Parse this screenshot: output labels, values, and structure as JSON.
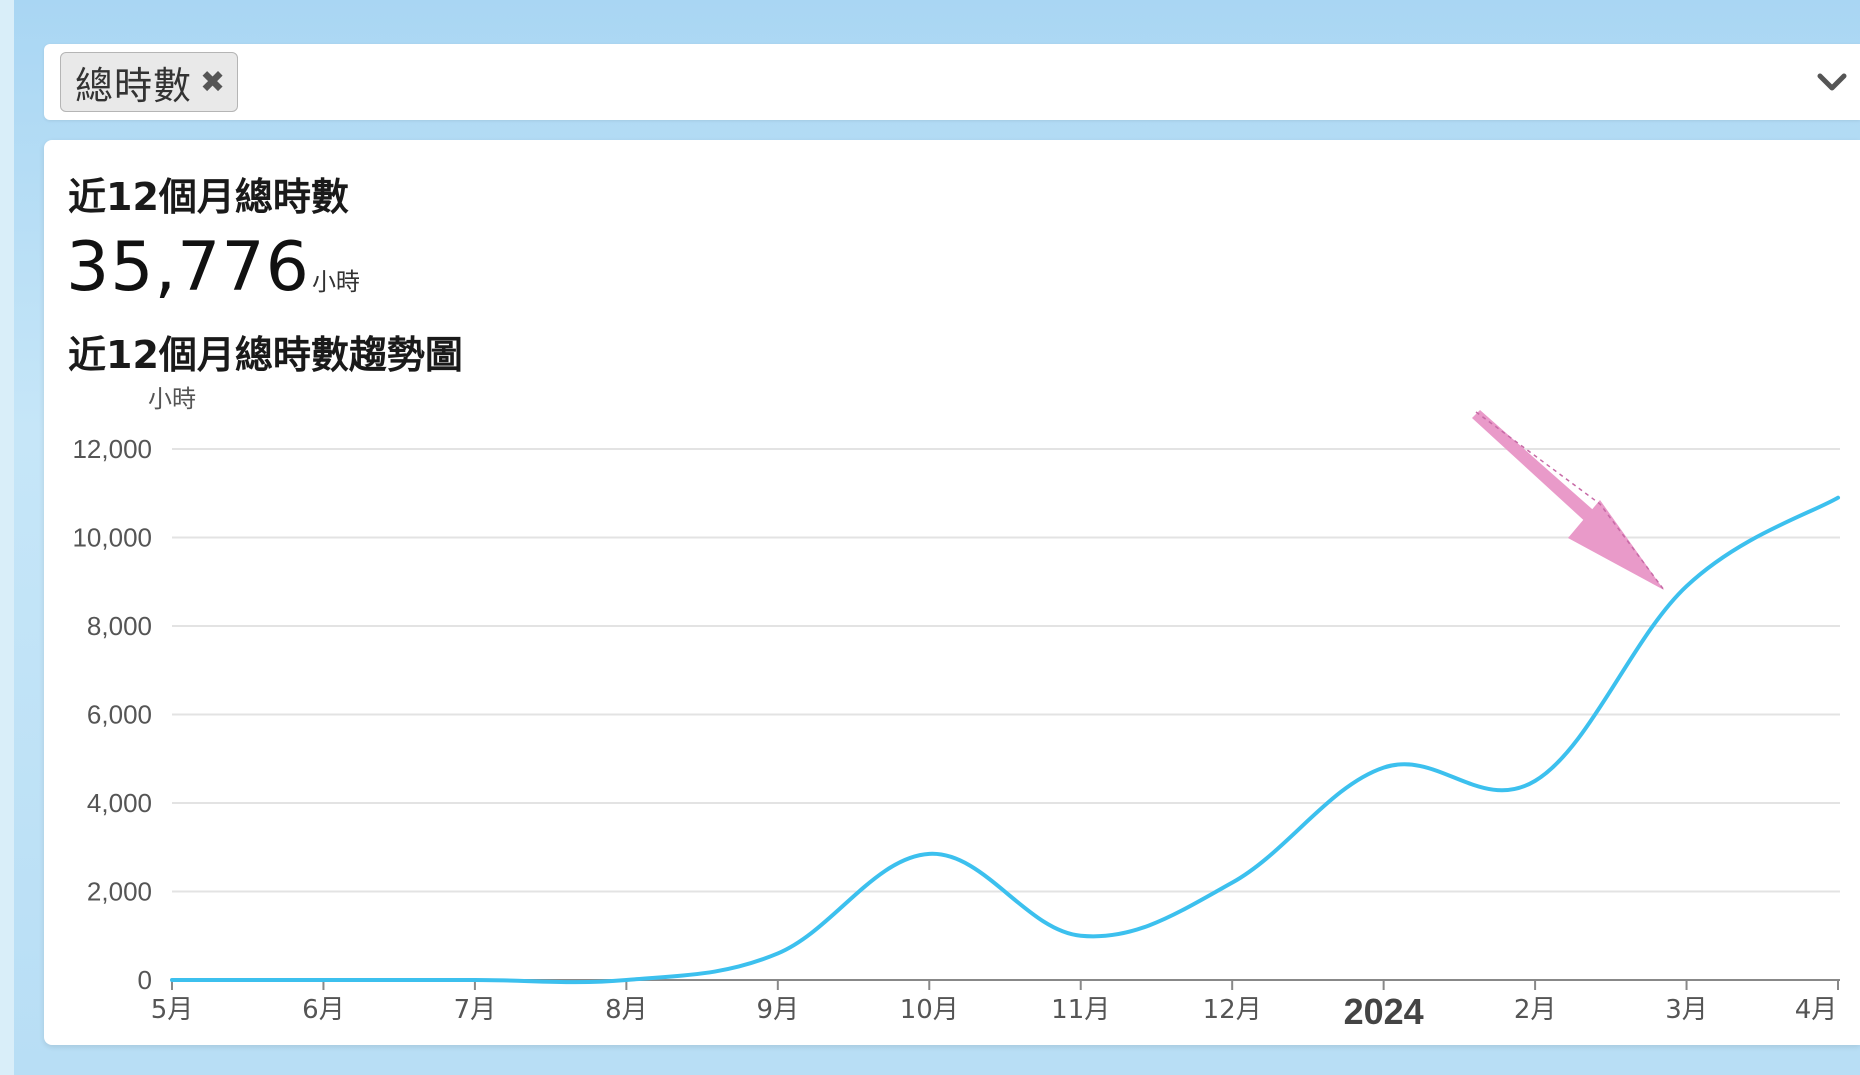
{
  "filter": {
    "chip_label": "總時數",
    "chip_close_symbol": "✖"
  },
  "card": {
    "title": "近12個月總時數",
    "total_value": "35,776",
    "total_unit": "小時",
    "chart_title": "近12個月總時數趨勢圖"
  },
  "chart_data": {
    "type": "line",
    "title": "近12個月總時數趨勢圖",
    "ylabel": "小時",
    "xlabel": "",
    "ylim": [
      0,
      12000
    ],
    "yticks": [
      0,
      2000,
      4000,
      6000,
      8000,
      10000,
      12000
    ],
    "ytick_labels": [
      "0",
      "2,000",
      "4,000",
      "6,000",
      "8,000",
      "10,000",
      "12,000"
    ],
    "categories": [
      "5月",
      "6月",
      "7月",
      "8月",
      "9月",
      "10月",
      "11月",
      "12月",
      "2024",
      "2月",
      "3月",
      "4月"
    ],
    "values": [
      0,
      0,
      0,
      0,
      600,
      2850,
      1000,
      2200,
      4800,
      4500,
      8900,
      10900
    ],
    "grid": true,
    "line_color": "#3cc0ee",
    "annotation": {
      "type": "arrow",
      "color": "#e99ac9",
      "points_to_category": "3月"
    }
  }
}
